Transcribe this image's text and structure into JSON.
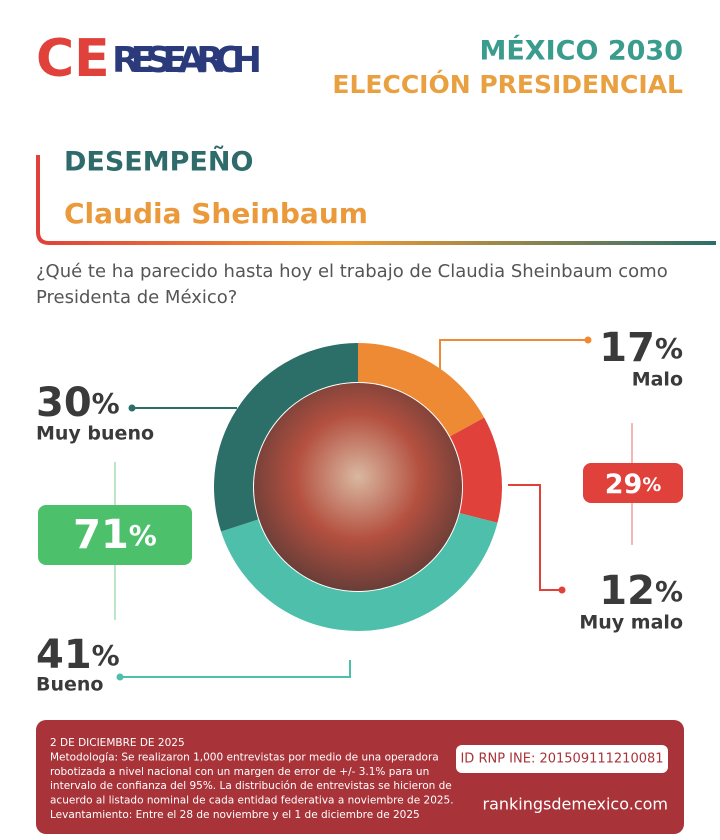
{
  "header": {
    "logo_ce": "CE",
    "logo_research": "RESEARCH",
    "title": "MÉXICO 2030",
    "subtitle": "ELECCIÓN PRESIDENCIAL"
  },
  "section": {
    "label": "DESEMPEÑO",
    "name": "Claudia Sheinbaum",
    "question_lines": [
      "¿Qué te ha parecido hasta hoy el trabajo de Claudia Sheinbaum como",
      "Presidenta de México?"
    ]
  },
  "chart_data": {
    "type": "donut",
    "unit": "%",
    "categories": [
      "Malo",
      "Muy malo",
      "Bueno",
      "Muy bueno"
    ],
    "values": [
      17,
      12,
      41,
      30
    ],
    "colors": [
      "#ef8a34",
      "#e0413a",
      "#4dbfaa",
      "#2c6e68"
    ],
    "groups": [
      {
        "value": 71,
        "color": "#4cc06a"
      },
      {
        "value": 29,
        "color": "#e0413a"
      }
    ]
  },
  "footer": {
    "lines": [
      "2 DE DICIEMBRE DE 2025",
      "Metodología: Se realizaron 1,000 entrevistas por medio de una operadora",
      "robotizada a nivel nacional con un margen de error de +/- 3.1% para un",
      "intervalo de confianza del 95%. La distribución de entrevistas se hicieron de",
      "acuerdo al listado nominal de cada entidad federativa a noviembre de 2025.",
      "Levantamiento: Entre el 28 de noviembre y el 1 de diciembre de 2025"
    ],
    "id": "ID RNP INE: 201509111210081",
    "website": "rankingsdemexico.com"
  }
}
